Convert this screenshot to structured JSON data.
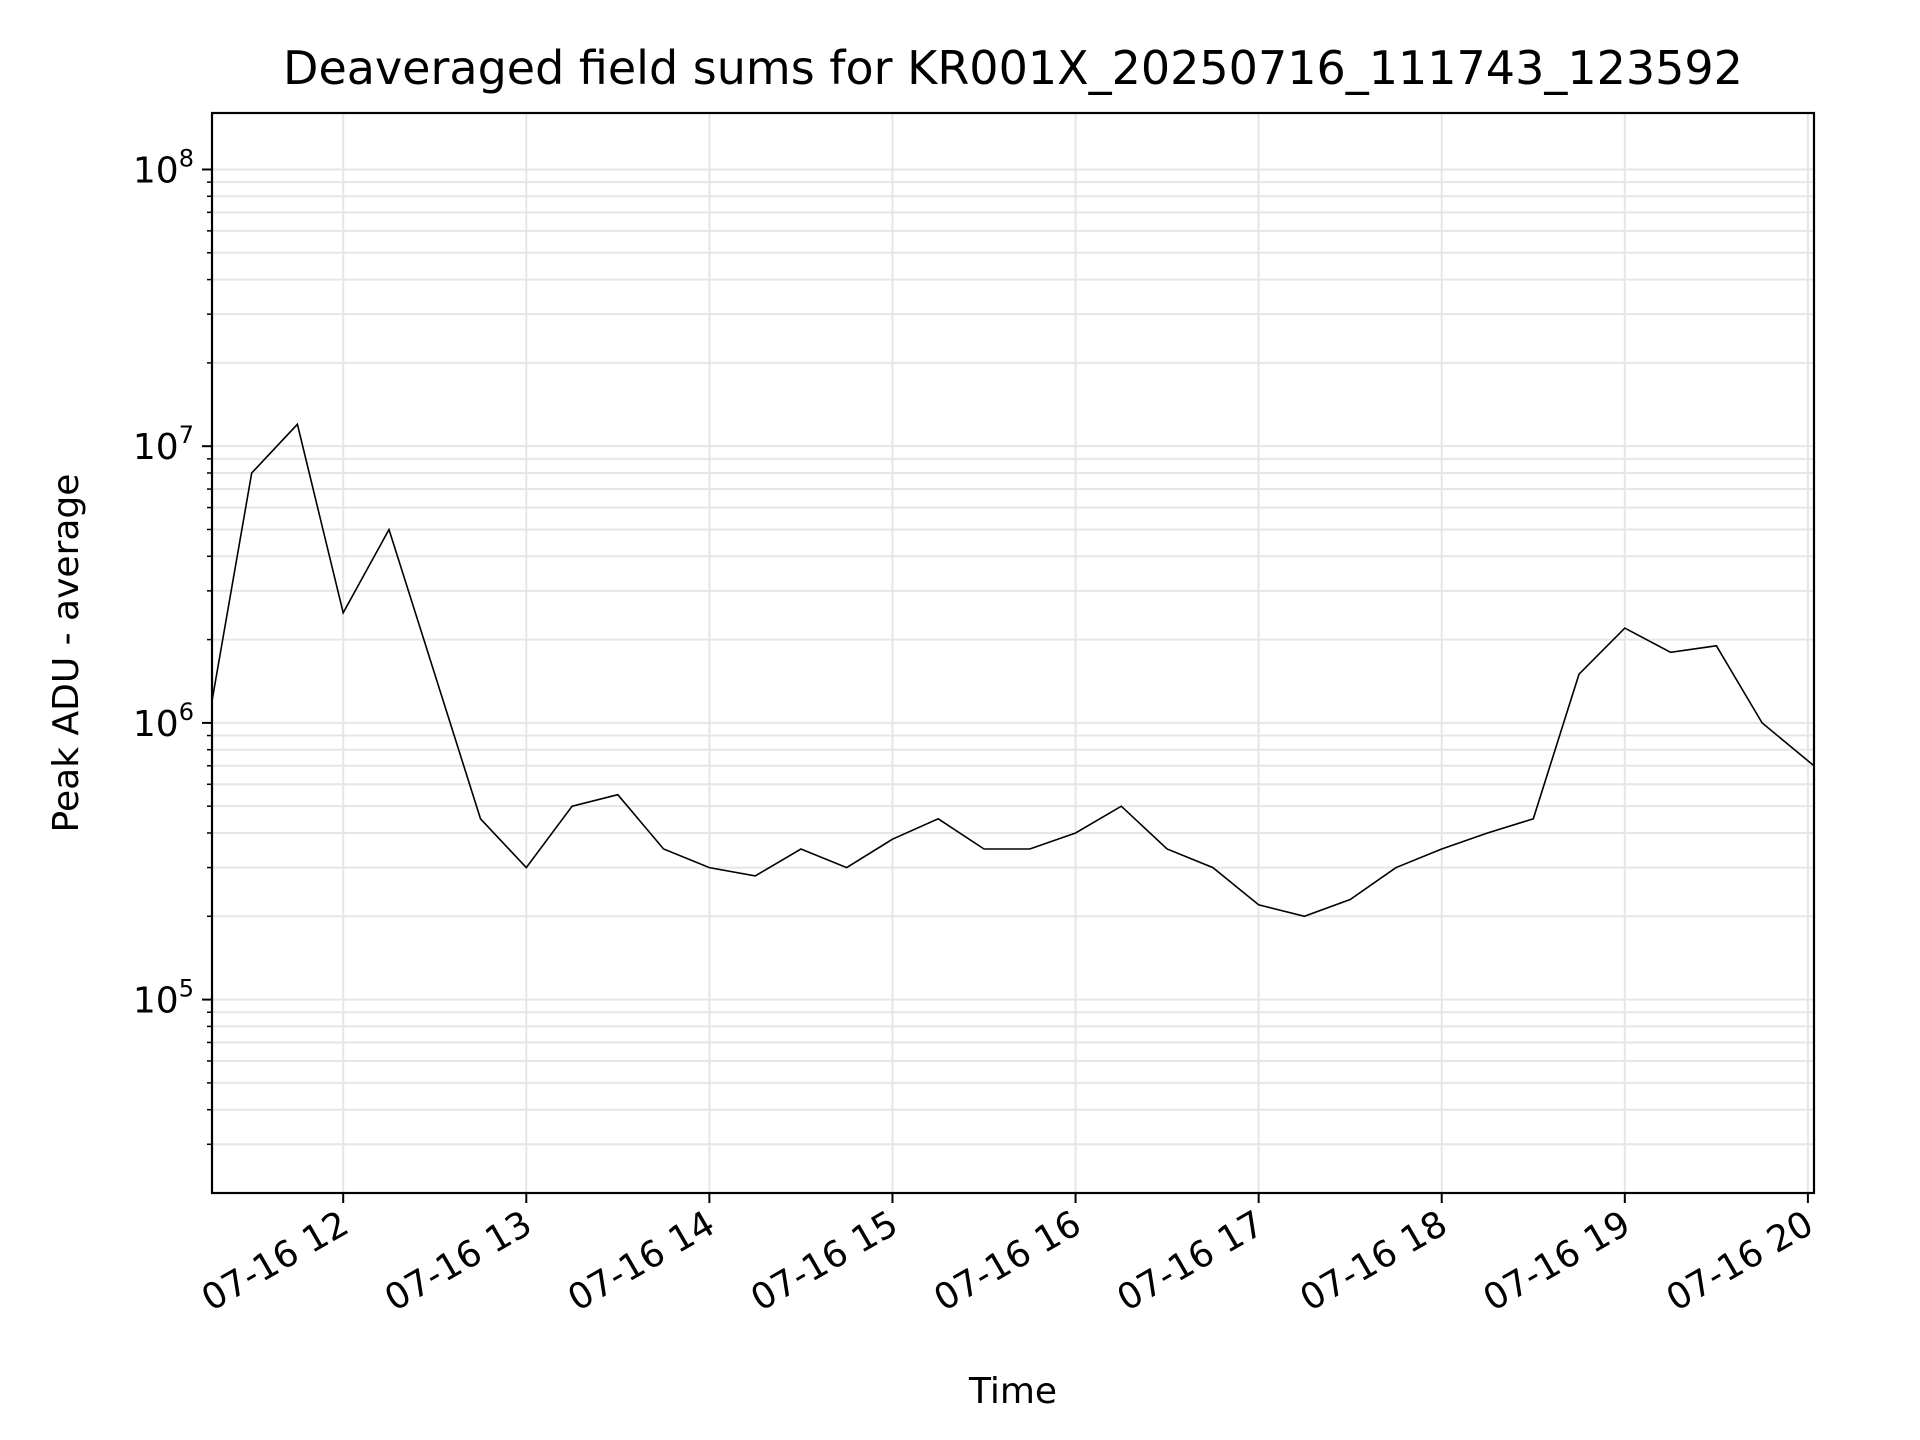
{
  "chart_data": {
    "type": "line",
    "title": "Deaveraged field sums for KR001X_20250716_111743_123592",
    "xlabel": "Time",
    "ylabel": "Peak ADU - average",
    "yscale": "log",
    "ylim": [
      20000,
      160000000
    ],
    "xlim": [
      "07-16 11:17",
      "07-16 20:02"
    ],
    "grid": true,
    "x_ticks": [
      "07-16 12",
      "07-16 13",
      "07-16 14",
      "07-16 15",
      "07-16 16",
      "07-16 17",
      "07-16 18",
      "07-16 19",
      "07-16 20"
    ],
    "y_ticks": [
      {
        "value": 100000,
        "base": "10",
        "exp": "5"
      },
      {
        "value": 1000000,
        "base": "10",
        "exp": "6"
      },
      {
        "value": 10000000,
        "base": "10",
        "exp": "7"
      },
      {
        "value": 100000000,
        "base": "10",
        "exp": "8"
      }
    ],
    "line_color": "#000000",
    "series": [
      {
        "x": [
          "07-16 11:17",
          "07-16 11:30",
          "07-16 11:45",
          "07-16 12:00",
          "07-16 12:15",
          "07-16 12:30",
          "07-16 12:45",
          "07-16 13:00",
          "07-16 13:15",
          "07-16 13:30",
          "07-16 13:45",
          "07-16 14:00",
          "07-16 14:15",
          "07-16 14:30",
          "07-16 14:45",
          "07-16 15:00",
          "07-16 15:15",
          "07-16 15:30",
          "07-16 15:45",
          "07-16 16:00",
          "07-16 16:15",
          "07-16 16:30",
          "07-16 16:45",
          "07-16 17:00",
          "07-16 17:15",
          "07-16 17:30",
          "07-16 17:45",
          "07-16 18:00",
          "07-16 18:15",
          "07-16 18:30",
          "07-16 18:45",
          "07-16 19:00",
          "07-16 19:15",
          "07-16 19:30",
          "07-16 19:45",
          "07-16 20:02"
        ],
        "y": [
          1200000,
          8000000,
          12000000,
          2500000,
          5000000,
          1500000,
          450000,
          300000,
          500000,
          550000,
          350000,
          300000,
          280000,
          350000,
          300000,
          380000,
          450000,
          350000,
          350000,
          400000,
          500000,
          350000,
          300000,
          220000,
          200000,
          230000,
          300000,
          350000,
          400000,
          450000,
          1500000,
          2200000,
          1800000,
          1900000,
          1000000,
          700000
        ]
      }
    ]
  }
}
